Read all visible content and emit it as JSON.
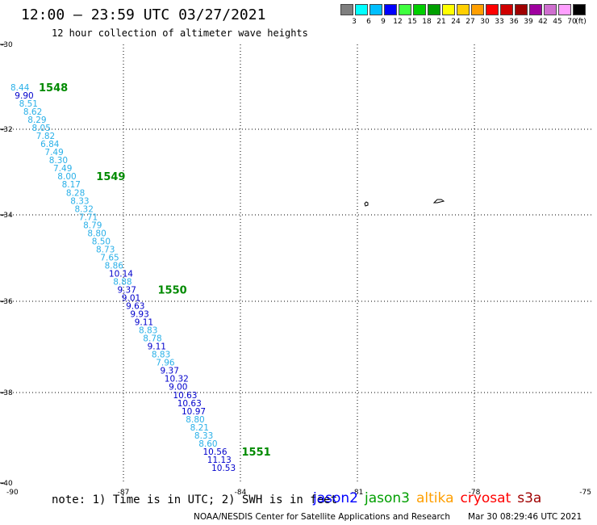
{
  "header": {
    "title": "12:00 – 23:59 UTC 03/27/2021",
    "subtitle": "12 hour collection of altimeter wave heights"
  },
  "legend": {
    "unit": "(ft)",
    "bins": [
      {
        "label": "3",
        "color": "#7f7f7f"
      },
      {
        "label": "6",
        "color": "#00ffff"
      },
      {
        "label": "9",
        "color": "#00bfff"
      },
      {
        "label": "12",
        "color": "#0000ff"
      },
      {
        "label": "15",
        "color": "#3fff3f"
      },
      {
        "label": "18",
        "color": "#00cf00"
      },
      {
        "label": "21",
        "color": "#009f00"
      },
      {
        "label": "24",
        "color": "#ffff00"
      },
      {
        "label": "27",
        "color": "#ffcf00"
      },
      {
        "label": "30",
        "color": "#ff9f00"
      },
      {
        "label": "33",
        "color": "#ff0000"
      },
      {
        "label": "36",
        "color": "#cf0000"
      },
      {
        "label": "39",
        "color": "#9f0000"
      },
      {
        "label": "42",
        "color": "#9f009f"
      },
      {
        "label": "45",
        "color": "#cf6fcf"
      },
      {
        "label": "70",
        "color": "#ff9fff"
      },
      {
        "label": "",
        "color": "#000000"
      }
    ]
  },
  "map": {
    "lon_range": [
      -90,
      -75
    ],
    "lat_range": [
      -40,
      -30
    ],
    "lat_ticks": [
      "-30",
      "-32",
      "-34",
      "-36",
      "-38",
      "-40"
    ],
    "lon_ticks": [
      "-90",
      "-87",
      "-84",
      "-81",
      "-78",
      "-75"
    ],
    "grid": "dotted"
  },
  "track": {
    "pass_labels": [
      {
        "label": "1548",
        "after_index": 0
      },
      {
        "label": "1549",
        "after_index": 11
      },
      {
        "label": "1550",
        "after_index": 25
      },
      {
        "label": "1551",
        "after_index": 45
      }
    ],
    "points": [
      {
        "v": "8.44",
        "c": "#2ab0e8"
      },
      {
        "v": "9.90",
        "c": "#0000cc"
      },
      {
        "v": "8.51",
        "c": "#2ab0e8"
      },
      {
        "v": "8.62",
        "c": "#2ab0e8"
      },
      {
        "v": "8.29",
        "c": "#2ab0e8"
      },
      {
        "v": "8.05",
        "c": "#2ab0e8"
      },
      {
        "v": "7.82",
        "c": "#2ab0e8"
      },
      {
        "v": "6.84",
        "c": "#2ab0e8"
      },
      {
        "v": "7.49",
        "c": "#2ab0e8"
      },
      {
        "v": "8.30",
        "c": "#2ab0e8"
      },
      {
        "v": "7.49",
        "c": "#2ab0e8"
      },
      {
        "v": "8.00",
        "c": "#2ab0e8"
      },
      {
        "v": "8.17",
        "c": "#2ab0e8"
      },
      {
        "v": "8.28",
        "c": "#2ab0e8"
      },
      {
        "v": "8.33",
        "c": "#2ab0e8"
      },
      {
        "v": "8.32",
        "c": "#2ab0e8"
      },
      {
        "v": "7.71",
        "c": "#2ab0e8"
      },
      {
        "v": "8.79",
        "c": "#2ab0e8"
      },
      {
        "v": "8.80",
        "c": "#2ab0e8"
      },
      {
        "v": "8.50",
        "c": "#2ab0e8"
      },
      {
        "v": "8.73",
        "c": "#2ab0e8"
      },
      {
        "v": "7.65",
        "c": "#2ab0e8"
      },
      {
        "v": "8.86",
        "c": "#2ab0e8"
      },
      {
        "v": "10.14",
        "c": "#0000cc"
      },
      {
        "v": "8.88",
        "c": "#2ab0e8"
      },
      {
        "v": "9.37",
        "c": "#0000cc"
      },
      {
        "v": "9.01",
        "c": "#0000cc"
      },
      {
        "v": "9.63",
        "c": "#0000cc"
      },
      {
        "v": "9.93",
        "c": "#0000cc"
      },
      {
        "v": "9.11",
        "c": "#0000cc"
      },
      {
        "v": "8.83",
        "c": "#2ab0e8"
      },
      {
        "v": "8.78",
        "c": "#2ab0e8"
      },
      {
        "v": "9.11",
        "c": "#0000cc"
      },
      {
        "v": "8.83",
        "c": "#2ab0e8"
      },
      {
        "v": "7.96",
        "c": "#2ab0e8"
      },
      {
        "v": "9.37",
        "c": "#0000cc"
      },
      {
        "v": "10.32",
        "c": "#0000cc"
      },
      {
        "v": "9.00",
        "c": "#0000cc"
      },
      {
        "v": "10.63",
        "c": "#0000cc"
      },
      {
        "v": "10.63",
        "c": "#0000cc"
      },
      {
        "v": "10.97",
        "c": "#0000cc"
      },
      {
        "v": "8.80",
        "c": "#2ab0e8"
      },
      {
        "v": "8.21",
        "c": "#2ab0e8"
      },
      {
        "v": "8.33",
        "c": "#2ab0e8"
      },
      {
        "v": "8.60",
        "c": "#2ab0e8"
      },
      {
        "v": "10.56",
        "c": "#0000cc"
      },
      {
        "v": "11.13",
        "c": "#0000cc"
      },
      {
        "v": "10.53",
        "c": "#0000cc"
      }
    ]
  },
  "footer": {
    "note": "note: 1) Time is in UTC; 2) SWH is in feet",
    "satellites": [
      {
        "name": "jason2",
        "color": "#0000ff"
      },
      {
        "name": "jason3",
        "color": "#009f00"
      },
      {
        "name": "altika",
        "color": "#ff9f00"
      },
      {
        "name": "cryosat",
        "color": "#ff0000"
      },
      {
        "name": "s3a",
        "color": "#9f0000"
      }
    ],
    "credit": "NOAA/NESDIS Center for Satellite Applications and Research",
    "timestamp": "Mar 30 08:29:46 UTC 2021"
  }
}
